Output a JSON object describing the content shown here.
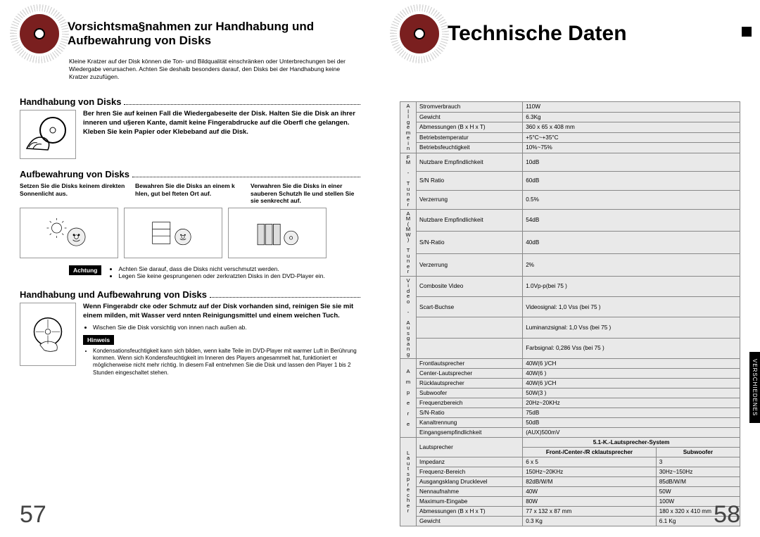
{
  "left": {
    "title": "Vorsichtsma§nahmen zur Handhabung und Aufbewahrung von Disks",
    "intro": "Kleine Kratzer auf der Disk können die Ton- und Bildqualität einschränken oder Unterbrechungen bei der Wiedergabe verursachen. Achten Sie deshalb besonders darauf, den Disks bei der Handhabung keine Kratzer zuzufügen.",
    "sec1_title": "Handhabung von Disks",
    "sec1_text": "Ber hren Sie auf keinen Fall die Wiedergabeseite der Disk. Halten Sie die Disk an ihrer inneren und u§eren Kante, damit keine Fingerabdrucke auf die Oberfl che gelangen.\nKleben Sie kein Papier oder Klebeband auf die Disk.",
    "sec2_title": "Aufbewahrung von Disks",
    "storage_cols": [
      "Setzen Sie die Disks keinem direkten Sonnenlicht aus.",
      "Bewahren Sie die Disks an einem k hlen, gut bel fteten Ort auf.",
      "Verwahren Sie die Disks in einer sauberen Schutzh lle und stellen Sie sie senkrecht auf."
    ],
    "achtung_label": "Achtung",
    "achtung_items": [
      "Achten Sie darauf, dass die Disks nicht verschmutzt werden.",
      "Legen Sie keine gesprungenen oder zerkratzten Disks in den DVD-Player ein."
    ],
    "sec3_title": "Handhabung und Aufbewahrung von Disks",
    "sec3_text": "Wenn Fingerabdr cke oder Schmutz auf der Disk vorhanden sind, reinigen Sie sie mit einem milden, mit Wasser verd nnten Reinigungsmittel und einem weichen Tuch.",
    "sec3_bullet": "Wischen Sie die Disk vorsichtig von innen nach außen ab.",
    "hinweis_label": "Hinweis",
    "hinweis_items": [
      "Kondensationsfeuchtigkeit kann sich bilden, wenn kalte Teile im DVD-Player mit warmer Luft in Berührung kommen. Wenn sich Kondensfeuchtigkeit im Inneren des Players angesammelt hat, funktioniert er möglicherweise nicht mehr richtig. In diesem Fall entnehmen Sie die Disk und lassen den Player 1 bis 2 Stunden eingeschaltet stehen."
    ],
    "page_num": "57"
  },
  "right": {
    "title": "Technische Daten",
    "side_tab": "VERSCHIEDENES",
    "page_num": "58",
    "spec": {
      "groups": [
        {
          "cat": "Allgemein",
          "rows": [
            [
              "Stromverbrauch",
              "110W"
            ],
            [
              "Gewicht",
              "6.3Kg"
            ],
            [
              "Abmessungen (B x H x T)",
              "360 x 65 x 408 mm"
            ],
            [
              "Betriebstemperatur",
              "+5°C~+35°C"
            ],
            [
              "Betriebsfeuchtigkeit",
              "10%~75%"
            ]
          ]
        },
        {
          "cat": "FM - Tuner",
          "rows": [
            [
              "Nutzbare Empfindlichkeit",
              "10dB"
            ],
            [
              "S/N Ratio",
              "60dB"
            ],
            [
              "Verzerrung",
              "0.5%"
            ]
          ]
        },
        {
          "cat": "AM(MW) Tuner",
          "rows": [
            [
              "Nutzbare Empfindlichkeit",
              "54dB"
            ],
            [
              "S/N-Ratio",
              "40dB"
            ],
            [
              "Verzerrung",
              "2%"
            ]
          ]
        },
        {
          "cat": "Video - Ausgang",
          "rows": [
            [
              "Combosite Video",
              "1.0Vp-p(bei 75  )"
            ],
            [
              "Scart-Buchse",
              "Videosignal: 1,0 Vss (bei 75  )"
            ],
            [
              "",
              "Luminanzsignal: 1,0 Vss (bei 75  )"
            ],
            [
              "",
              "Farbsignal: 0,286 Vss (bei 75  )"
            ]
          ]
        },
        {
          "cat": "A m p e r e",
          "rows": [
            [
              "Frontlautsprecher",
              "40W(6  )/CH"
            ],
            [
              "Center-Lautsprecher",
              "40W(6  )"
            ],
            [
              "Rücklautsprecher",
              "40W(6  )/CH"
            ],
            [
              "Subwoofer",
              "50W(3  )"
            ],
            [
              "Frequenzbereich",
              "20Hz~20KHz"
            ],
            [
              "S/N-Ratio",
              "75dB"
            ],
            [
              "Kanaltrennung",
              "50dB"
            ],
            [
              "Eingangsempfindlichkeit",
              "(AUX)500mV"
            ]
          ]
        }
      ],
      "speaker": {
        "cat": "L a u t s p r e c h e r",
        "system_header": "5.1-K.-Lautsprecher-System",
        "col1": "Front-/Center-/R cklautsprecher",
        "col2": "Subwoofer",
        "rows": [
          [
            "Lautsprecher",
            "",
            ""
          ],
          [
            "Impedanz",
            "6   x 5",
            "3  "
          ],
          [
            "Frequenz-Bereich",
            "150Hz~20KHz",
            "30Hz~150Hz"
          ],
          [
            "Ausgangsklang Drucklevel",
            "82dB/W/M",
            "85dB/W/M"
          ],
          [
            "Nennaufnahme",
            "40W",
            "50W"
          ],
          [
            "Maximum-Eingabe",
            "80W",
            "100W"
          ],
          [
            "Abmessungen (B x H x T)",
            "77 x 132 x 87 mm",
            "180 x 320 x 410 mm"
          ],
          [
            "Gewicht",
            "0.3 Kg",
            "6.1 Kg"
          ]
        ]
      }
    }
  },
  "colors": {
    "table_bg": "#e9e9e9",
    "disc_red": "#7a1f1f"
  }
}
